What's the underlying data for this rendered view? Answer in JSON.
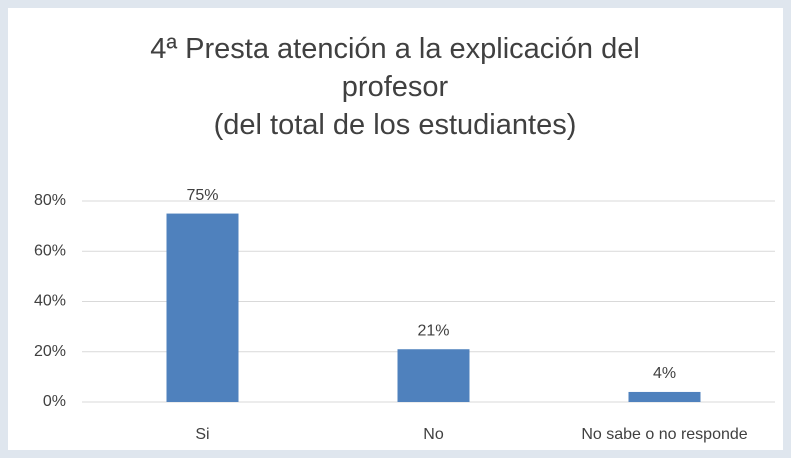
{
  "chart_data": {
    "type": "bar",
    "title": "4ª Presta atención a la explicación del profesor",
    "subtitle": "(del total de los estudiantes)",
    "categories": [
      "Si",
      "No",
      "No sabe o no responde"
    ],
    "values": [
      75,
      21,
      4
    ],
    "value_labels": [
      "75%",
      "21%",
      "4%"
    ],
    "color": "#4f81bd",
    "ylim": [
      0,
      80
    ],
    "yticks": [
      {
        "value": 0,
        "label": "0%"
      },
      {
        "value": 20,
        "label": "20%"
      },
      {
        "value": 40,
        "label": "40%"
      },
      {
        "value": 60,
        "label": "60%"
      },
      {
        "value": 80,
        "label": "80%"
      }
    ],
    "grid": true
  }
}
